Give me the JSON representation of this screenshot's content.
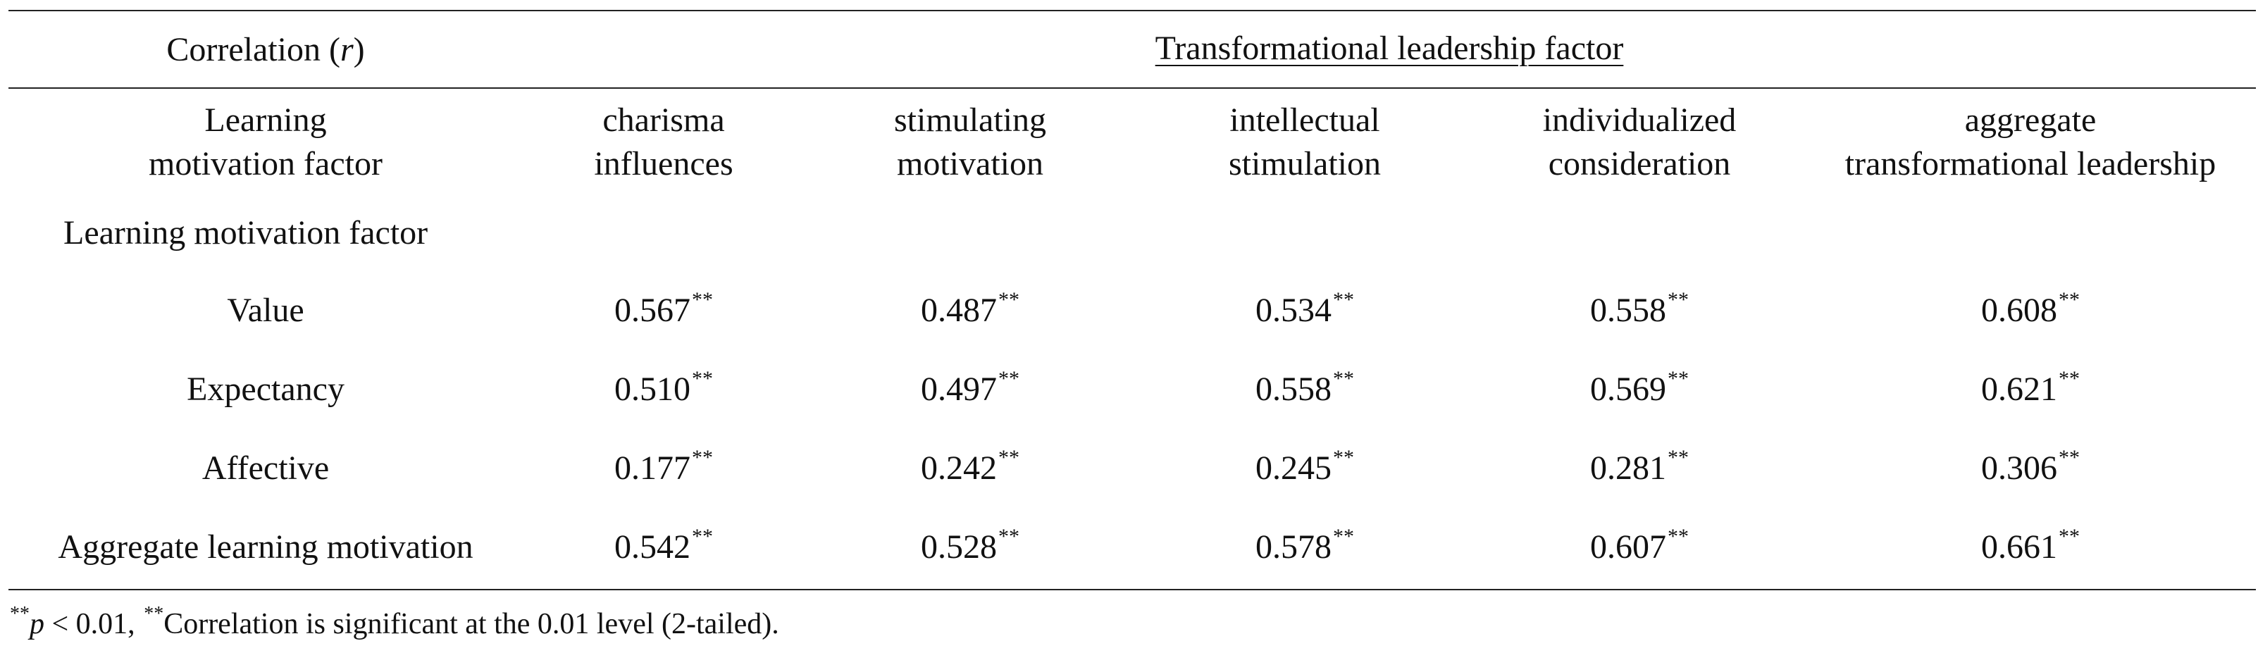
{
  "header": {
    "corner_label": "Correlation (r)",
    "corner_label_prefix": "Correlation (",
    "corner_label_var": "r",
    "corner_label_suffix": ")",
    "group_label": "Transformational leadership factor"
  },
  "columns": {
    "row_header_line1": "Learning",
    "row_header_line2": "motivation factor",
    "c1_line1": "charisma",
    "c1_line2": "influences",
    "c2_line1": "stimulating",
    "c2_line2": "motivation",
    "c3_line1": "intellectual",
    "c3_line2": "stimulation",
    "c4_line1": "individualized",
    "c4_line2": "consideration",
    "c5_line1": "aggregate",
    "c5_line2": "transformational leadership"
  },
  "section_label": "Learning motivation factor",
  "significance_marker": "**",
  "rows": [
    {
      "label": "Value",
      "values": [
        "0.567",
        "0.487",
        "0.534",
        "0.558",
        "0.608"
      ]
    },
    {
      "label": "Expectancy",
      "values": [
        "0.510",
        "0.497",
        "0.558",
        "0.569",
        "0.621"
      ]
    },
    {
      "label": "Affective",
      "values": [
        "0.177",
        "0.242",
        "0.245",
        "0.281",
        "0.306"
      ]
    },
    {
      "label": "Aggregate learning motivation",
      "values": [
        "0.542",
        "0.528",
        "0.578",
        "0.607",
        "0.661"
      ]
    }
  ],
  "footnote": {
    "marker1": "**",
    "p_symbol": "p",
    "p_text": " < 0.01, ",
    "marker2": "**",
    "text": "Correlation is significant at the 0.01 level (2-tailed)."
  }
}
